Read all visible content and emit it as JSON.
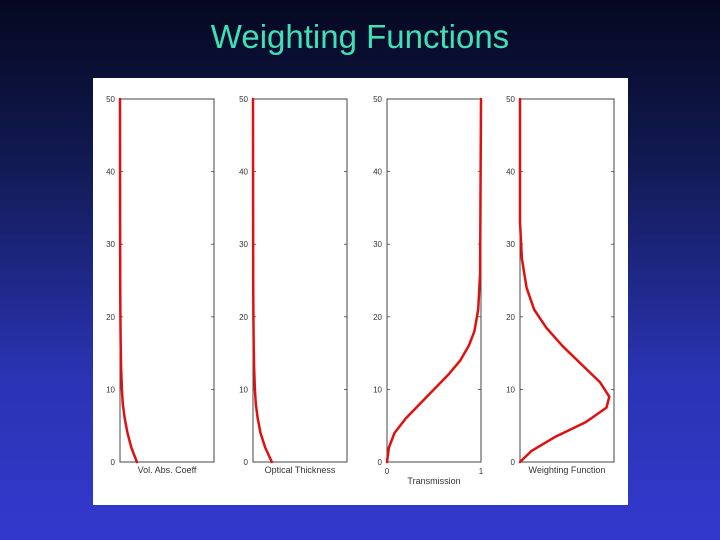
{
  "slide": {
    "title": "Weighting Functions"
  },
  "colors": {
    "curve": "#e01010",
    "title": "#3fe0b6"
  },
  "chart_data": [
    {
      "type": "line",
      "xlabel": "Vol. Abs. Coeff",
      "x_ticks": [],
      "y_ticks": [
        "0",
        "10",
        "20",
        "30",
        "40",
        "50"
      ],
      "ylim": [
        0,
        50
      ],
      "xlim": [
        0,
        1
      ],
      "series": [
        {
          "x": [
            0.18,
            0.12,
            0.08,
            0.05,
            0.03,
            0.02,
            0.012,
            0.007,
            0.004,
            0.002,
            0.001,
            0.0
          ],
          "y": [
            0,
            2,
            4,
            6,
            8,
            10,
            13,
            16,
            20,
            25,
            35,
            50
          ]
        }
      ]
    },
    {
      "type": "line",
      "xlabel": "Optical Thickness",
      "x_ticks": [],
      "y_ticks": [
        "0",
        "10",
        "20",
        "30",
        "40",
        "50"
      ],
      "ylim": [
        0,
        50
      ],
      "xlim": [
        0,
        1
      ],
      "series": [
        {
          "x": [
            0.2,
            0.13,
            0.08,
            0.05,
            0.03,
            0.02,
            0.012,
            0.007,
            0.004,
            0.002,
            0.001,
            0.0
          ],
          "y": [
            0,
            2,
            4,
            6,
            8,
            10,
            13,
            16,
            20,
            25,
            35,
            50
          ]
        }
      ]
    },
    {
      "type": "line",
      "xlabel": "Transmission",
      "x_ticks": [
        "0",
        "1"
      ],
      "y_ticks": [
        "0",
        "10",
        "20",
        "30",
        "40",
        "50"
      ],
      "ylim": [
        0,
        50
      ],
      "xlim": [
        0,
        1
      ],
      "series": [
        {
          "x": [
            0.0,
            0.02,
            0.08,
            0.2,
            0.35,
            0.5,
            0.65,
            0.78,
            0.87,
            0.93,
            0.97,
            0.99,
            1.0
          ],
          "y": [
            0,
            2,
            4,
            6,
            8,
            10,
            12,
            14,
            16,
            18,
            21,
            26,
            50
          ]
        }
      ]
    },
    {
      "type": "line",
      "xlabel": "Weighting Function",
      "x_ticks": [],
      "y_ticks": [
        "0",
        "10",
        "20",
        "30",
        "40",
        "50"
      ],
      "ylim": [
        0,
        50
      ],
      "xlim": [
        0,
        1
      ],
      "series": [
        {
          "x": [
            0.0,
            0.12,
            0.38,
            0.7,
            0.92,
            0.95,
            0.85,
            0.65,
            0.45,
            0.28,
            0.15,
            0.07,
            0.02,
            0.0,
            0.0
          ],
          "y": [
            0,
            1.5,
            3.5,
            5.5,
            7.5,
            9,
            11,
            13.5,
            16,
            18.5,
            21,
            24,
            28,
            33,
            50
          ]
        }
      ]
    }
  ]
}
